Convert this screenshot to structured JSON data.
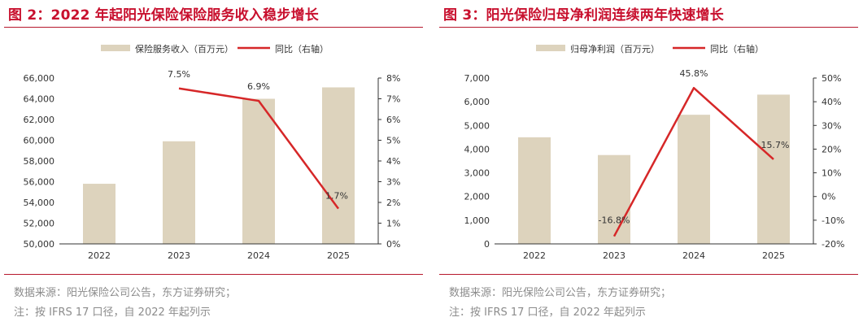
{
  "charts": [
    {
      "title": "图 2：2022 年起阳光保险保险服务收入稳步增长",
      "source": "数据来源：阳光保险公司公告，东方证券研究；",
      "note": "注：按 IFRS 17 口径，自 2022 年起列示",
      "legend_bar": "保险服务收入（百万元）",
      "legend_line": "同比（右轴）",
      "colors": {
        "bar": "#ddd3bd",
        "line": "#d62728",
        "title": "#c8102e"
      }
    },
    {
      "title": "图 3：阳光保险归母净利润连续两年快速增长",
      "source": "数据来源：阳光保险公司公告，东方证券研究；",
      "note": "注：按 IFRS 17 口径，自 2022 年起列示",
      "legend_bar": "归母净利润（百万元）",
      "legend_line": "同比（右轴）",
      "colors": {
        "bar": "#ddd3bd",
        "line": "#d62728",
        "title": "#c8102e"
      }
    }
  ],
  "chart_data": [
    {
      "type": "bar",
      "categories": [
        "2022",
        "2023",
        "2024",
        "2025"
      ],
      "series": [
        {
          "name": "保险服务收入（百万元）",
          "type": "bar",
          "axis": "left",
          "values": [
            55800,
            59900,
            64000,
            65100
          ]
        },
        {
          "name": "同比（右轴）",
          "type": "line",
          "axis": "right",
          "values": [
            null,
            7.5,
            6.9,
            1.7
          ],
          "labels": [
            "",
            "7.5%",
            "6.9%",
            "1.7%"
          ]
        }
      ],
      "y_left": {
        "min": 50000,
        "max": 66000,
        "step": 2000,
        "ticks": [
          "50,000",
          "52,000",
          "54,000",
          "56,000",
          "58,000",
          "60,000",
          "62,000",
          "64,000",
          "66,000"
        ]
      },
      "y_right": {
        "min": 0,
        "max": 8,
        "step": 1,
        "ticks": [
          "0%",
          "1%",
          "2%",
          "3%",
          "4%",
          "5%",
          "6%",
          "7%",
          "8%"
        ]
      },
      "legend_position": "top-center",
      "grid": false
    },
    {
      "type": "bar",
      "categories": [
        "2022",
        "2023",
        "2024",
        "2025"
      ],
      "series": [
        {
          "name": "归母净利润（百万元）",
          "type": "bar",
          "axis": "left",
          "values": [
            4500,
            3750,
            5450,
            6300
          ]
        },
        {
          "name": "同比（右轴）",
          "type": "line",
          "axis": "right",
          "values": [
            null,
            -16.8,
            45.8,
            15.7
          ],
          "labels": [
            "",
            "-16.8%",
            "45.8%",
            "15.7%"
          ]
        }
      ],
      "y_left": {
        "min": 0,
        "max": 7000,
        "step": 1000,
        "ticks": [
          "0",
          "1,000",
          "2,000",
          "3,000",
          "4,000",
          "5,000",
          "6,000",
          "7,000"
        ]
      },
      "y_right": {
        "min": -20,
        "max": 50,
        "step": 10,
        "ticks": [
          "-20%",
          "-10%",
          "0%",
          "10%",
          "20%",
          "30%",
          "40%",
          "50%"
        ]
      },
      "legend_position": "top-center",
      "grid": false
    }
  ]
}
